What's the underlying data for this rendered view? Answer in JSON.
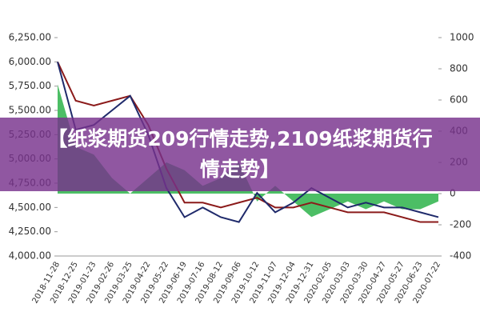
{
  "chart_data": {
    "type": "line",
    "categories": [
      "2018-11-28",
      "2018-12-25",
      "2019-01-23",
      "2019-02-26",
      "2019-03-25",
      "2019-04-22",
      "2019-05-22",
      "2019-06-19",
      "2019-07-16",
      "2019-08-12",
      "2019-09-06",
      "2019-10-12",
      "2019-11-07",
      "2019-12-04",
      "2019-12-31",
      "2020-02-05",
      "2020-03-03",
      "2020-03-30",
      "2020-04-27",
      "2020-05-27",
      "2020-06-23",
      "2020-07-22"
    ],
    "series": [
      {
        "color": "#2db34a",
        "kind": "area",
        "axis": "y2",
        "values": [
          700,
          300,
          250,
          100,
          0,
          100,
          200,
          150,
          50,
          100,
          200,
          -50,
          50,
          -50,
          -150,
          -100,
          -50,
          -100,
          -50,
          -100,
          -100,
          -50
        ]
      },
      {
        "color": "#8b1a1a",
        "values": [
          6000,
          5600,
          5550,
          5600,
          5650,
          5350,
          4900,
          4550,
          4550,
          4500,
          4550,
          4600,
          4500,
          4500,
          4550,
          4500,
          4450,
          4450,
          4450,
          4400,
          4350,
          4350
        ]
      },
      {
        "color": "#1f2a6b",
        "values": [
          6000,
          5300,
          5350,
          5500,
          5650,
          5250,
          4700,
          4400,
          4500,
          4400,
          4350,
          4650,
          4450,
          4550,
          4700,
          4600,
          4500,
          4550,
          4500,
          4500,
          4450,
          4400
        ]
      }
    ],
    "ylim": [
      4000,
      6250
    ],
    "yticks": [
      {
        "value": 4000,
        "label": "4,000.00"
      },
      {
        "value": 4250,
        "label": "4,250.00"
      },
      {
        "value": 4500,
        "label": "4,500.00"
      },
      {
        "value": 4750,
        "label": "4,750.00"
      },
      {
        "value": 5000,
        "label": "5,000.00"
      },
      {
        "value": 5250,
        "label": "5,250.00"
      },
      {
        "value": 5500,
        "label": "5,500.00"
      },
      {
        "value": 5750,
        "label": "5,750.00"
      },
      {
        "value": 6000,
        "label": "6,000.00"
      },
      {
        "value": 6250,
        "label": "6,250.00"
      }
    ],
    "y2lim": [
      -400,
      1000
    ],
    "y2ticks": [
      -400,
      -200,
      0,
      200,
      400,
      600,
      800,
      1000
    ]
  },
  "overlay": {
    "text": "【纸浆期货209行情走势,2109纸浆期货行情走势】"
  }
}
